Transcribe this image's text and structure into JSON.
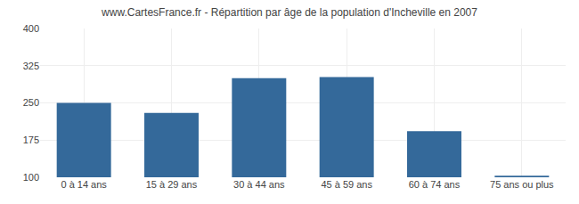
{
  "chart_data": {
    "type": "bar",
    "title": "www.CartesFrance.fr - Répartition par âge de la population d'Incheville en 2007",
    "categories": [
      "0 à 14 ans",
      "15 à 29 ans",
      "30 à 44 ans",
      "45 à 59 ans",
      "60 à 74 ans",
      "75 ans ou plus"
    ],
    "values": [
      250,
      230,
      300,
      302,
      193,
      103
    ],
    "color": "#34699a",
    "ylim": [
      100,
      400
    ],
    "yticks": [
      100,
      175,
      250,
      325,
      400
    ],
    "grid": true
  }
}
